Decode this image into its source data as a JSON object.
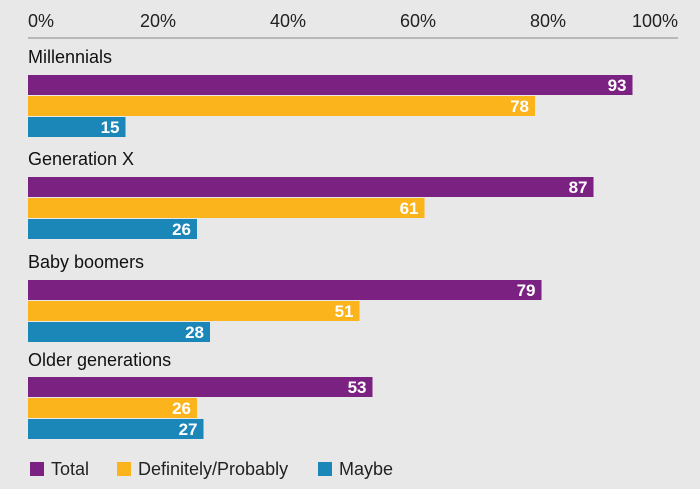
{
  "chart_data": {
    "type": "bar",
    "orientation": "horizontal",
    "categories": [
      "Millennials",
      "Generation X",
      "Baby boomers",
      "Older generations"
    ],
    "series": [
      {
        "name": "Total",
        "color": "#7a2182",
        "values": [
          93,
          87,
          79,
          53
        ]
      },
      {
        "name": "Definitely/Probably",
        "color": "#fbb41c",
        "values": [
          78,
          61,
          51,
          26
        ]
      },
      {
        "name": "Maybe",
        "color": "#1a87b8",
        "values": [
          15,
          26,
          28,
          27
        ]
      }
    ],
    "x_ticks": [
      "0%",
      "20%",
      "40%",
      "60%",
      "80%",
      "100%"
    ],
    "xlim": [
      0,
      100
    ],
    "axis_position": "top",
    "legend_position": "bottom-left",
    "grid": false
  }
}
